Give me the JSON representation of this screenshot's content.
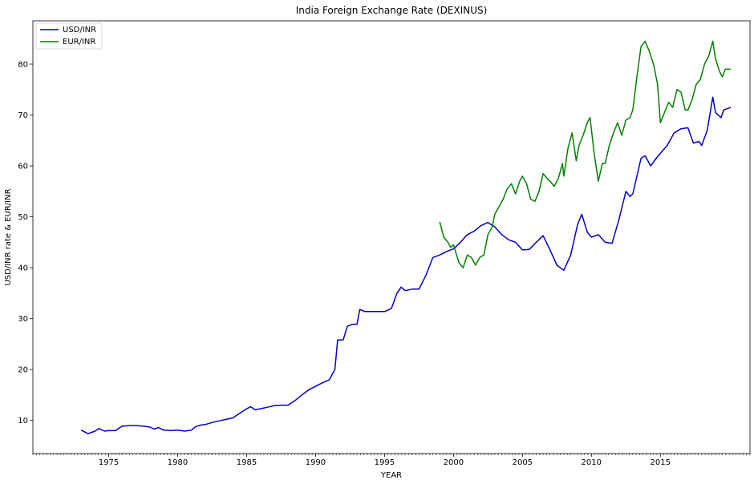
{
  "chart_data": {
    "type": "line",
    "title": "India Foreign Exchange Rate (DEXINUS)",
    "xlabel": "YEAR",
    "ylabel": "USD/INR rate & EUR/INR",
    "xlim": [
      1969.5,
      2021.5
    ],
    "ylim": [
      3.5,
      88.5
    ],
    "xticks": [
      1975,
      1980,
      1985,
      1990,
      1995,
      2000,
      2005,
      2010,
      2015
    ],
    "yticks": [
      10,
      20,
      30,
      40,
      50,
      60,
      70,
      80
    ],
    "grid": false,
    "legend": "top-left",
    "series": [
      {
        "name": "USD/INR",
        "color": "#0000cc",
        "points": [
          [
            1973.0,
            8.1
          ],
          [
            1973.5,
            7.4
          ],
          [
            1974.0,
            7.9
          ],
          [
            1974.3,
            8.4
          ],
          [
            1974.7,
            7.9
          ],
          [
            1975.0,
            8.0
          ],
          [
            1975.5,
            8.0
          ],
          [
            1975.8,
            8.6
          ],
          [
            1976.0,
            8.9
          ],
          [
            1976.5,
            9.0
          ],
          [
            1977.0,
            9.0
          ],
          [
            1977.5,
            8.9
          ],
          [
            1978.0,
            8.7
          ],
          [
            1978.3,
            8.3
          ],
          [
            1978.6,
            8.6
          ],
          [
            1979.0,
            8.1
          ],
          [
            1979.5,
            8.0
          ],
          [
            1980.0,
            8.1
          ],
          [
            1980.5,
            7.9
          ],
          [
            1981.0,
            8.1
          ],
          [
            1981.3,
            8.8
          ],
          [
            1981.7,
            9.1
          ],
          [
            1982.0,
            9.2
          ],
          [
            1982.5,
            9.6
          ],
          [
            1983.0,
            9.9
          ],
          [
            1983.5,
            10.2
          ],
          [
            1984.0,
            10.5
          ],
          [
            1984.5,
            11.4
          ],
          [
            1985.0,
            12.3
          ],
          [
            1985.3,
            12.7
          ],
          [
            1985.6,
            12.1
          ],
          [
            1986.0,
            12.3
          ],
          [
            1986.5,
            12.6
          ],
          [
            1987.0,
            12.9
          ],
          [
            1987.5,
            13.0
          ],
          [
            1988.0,
            13.0
          ],
          [
            1988.5,
            13.9
          ],
          [
            1989.0,
            15.0
          ],
          [
            1989.5,
            16.0
          ],
          [
            1990.0,
            16.7
          ],
          [
            1990.5,
            17.4
          ],
          [
            1991.0,
            18.0
          ],
          [
            1991.4,
            20.0
          ],
          [
            1991.6,
            25.8
          ],
          [
            1992.0,
            25.8
          ],
          [
            1992.3,
            28.5
          ],
          [
            1992.7,
            28.9
          ],
          [
            1993.0,
            28.9
          ],
          [
            1993.2,
            31.8
          ],
          [
            1993.6,
            31.4
          ],
          [
            1994.0,
            31.4
          ],
          [
            1995.0,
            31.4
          ],
          [
            1995.5,
            32.0
          ],
          [
            1995.9,
            35.0
          ],
          [
            1996.2,
            36.2
          ],
          [
            1996.5,
            35.5
          ],
          [
            1997.0,
            35.8
          ],
          [
            1997.5,
            35.8
          ],
          [
            1998.0,
            38.5
          ],
          [
            1998.5,
            42.0
          ],
          [
            1999.0,
            42.5
          ],
          [
            1999.5,
            43.2
          ],
          [
            2000.0,
            43.7
          ],
          [
            2000.5,
            45.0
          ],
          [
            2001.0,
            46.5
          ],
          [
            2001.5,
            47.2
          ],
          [
            2002.0,
            48.3
          ],
          [
            2002.5,
            48.9
          ],
          [
            2003.0,
            48.0
          ],
          [
            2003.5,
            46.5
          ],
          [
            2004.0,
            45.5
          ],
          [
            2004.5,
            45.0
          ],
          [
            2005.0,
            43.5
          ],
          [
            2005.5,
            43.6
          ],
          [
            2006.0,
            45.0
          ],
          [
            2006.5,
            46.3
          ],
          [
            2007.0,
            43.5
          ],
          [
            2007.5,
            40.5
          ],
          [
            2008.0,
            39.5
          ],
          [
            2008.5,
            42.5
          ],
          [
            2009.0,
            48.5
          ],
          [
            2009.3,
            50.5
          ],
          [
            2009.7,
            47.0
          ],
          [
            2010.0,
            46.0
          ],
          [
            2010.5,
            46.5
          ],
          [
            2011.0,
            45.0
          ],
          [
            2011.5,
            44.8
          ],
          [
            2012.0,
            49.5
          ],
          [
            2012.5,
            55.0
          ],
          [
            2012.8,
            54.0
          ],
          [
            2013.0,
            54.5
          ],
          [
            2013.6,
            61.5
          ],
          [
            2013.9,
            62.0
          ],
          [
            2014.3,
            60.0
          ],
          [
            2014.7,
            61.5
          ],
          [
            2015.0,
            62.5
          ],
          [
            2015.5,
            64.0
          ],
          [
            2016.0,
            66.5
          ],
          [
            2016.5,
            67.3
          ],
          [
            2017.0,
            67.5
          ],
          [
            2017.4,
            64.5
          ],
          [
            2017.8,
            64.8
          ],
          [
            2018.0,
            64.0
          ],
          [
            2018.4,
            67.0
          ],
          [
            2018.8,
            73.5
          ],
          [
            2019.0,
            70.5
          ],
          [
            2019.4,
            69.5
          ],
          [
            2019.6,
            71.0
          ],
          [
            2019.9,
            71.3
          ],
          [
            2020.1,
            71.5
          ]
        ]
      },
      {
        "name": "EUR/INR",
        "color": "#008000",
        "points": [
          [
            1999.0,
            49.0
          ],
          [
            1999.3,
            46.0
          ],
          [
            1999.6,
            45.0
          ],
          [
            1999.8,
            44.0
          ],
          [
            2000.0,
            44.5
          ],
          [
            2000.4,
            41.0
          ],
          [
            2000.7,
            40.0
          ],
          [
            2001.0,
            42.5
          ],
          [
            2001.3,
            42.0
          ],
          [
            2001.6,
            40.5
          ],
          [
            2001.9,
            42.0
          ],
          [
            2002.2,
            42.5
          ],
          [
            2002.5,
            46.5
          ],
          [
            2002.8,
            48.0
          ],
          [
            2003.0,
            50.5
          ],
          [
            2003.3,
            52.0
          ],
          [
            2003.6,
            53.5
          ],
          [
            2003.9,
            55.5
          ],
          [
            2004.2,
            56.5
          ],
          [
            2004.5,
            54.5
          ],
          [
            2004.8,
            57.0
          ],
          [
            2005.0,
            58.0
          ],
          [
            2005.3,
            56.5
          ],
          [
            2005.6,
            53.5
          ],
          [
            2005.9,
            53.0
          ],
          [
            2006.2,
            55.0
          ],
          [
            2006.5,
            58.5
          ],
          [
            2006.8,
            57.5
          ],
          [
            2007.0,
            57.0
          ],
          [
            2007.3,
            56.0
          ],
          [
            2007.6,
            57.5
          ],
          [
            2007.9,
            60.5
          ],
          [
            2008.0,
            58.0
          ],
          [
            2008.3,
            63.5
          ],
          [
            2008.6,
            66.5
          ],
          [
            2008.9,
            61.0
          ],
          [
            2009.1,
            64.0
          ],
          [
            2009.4,
            66.0
          ],
          [
            2009.7,
            68.5
          ],
          [
            2009.9,
            69.5
          ],
          [
            2010.2,
            62.5
          ],
          [
            2010.5,
            57.0
          ],
          [
            2010.8,
            60.5
          ],
          [
            2011.0,
            60.5
          ],
          [
            2011.3,
            64.0
          ],
          [
            2011.6,
            66.5
          ],
          [
            2011.9,
            68.5
          ],
          [
            2012.2,
            66.0
          ],
          [
            2012.5,
            69.0
          ],
          [
            2012.8,
            69.5
          ],
          [
            2013.0,
            71.0
          ],
          [
            2013.3,
            77.5
          ],
          [
            2013.6,
            83.5
          ],
          [
            2013.9,
            84.5
          ],
          [
            2014.2,
            82.5
          ],
          [
            2014.5,
            80.0
          ],
          [
            2014.8,
            76.0
          ],
          [
            2015.0,
            68.5
          ],
          [
            2015.3,
            70.5
          ],
          [
            2015.6,
            72.5
          ],
          [
            2015.9,
            71.5
          ],
          [
            2016.2,
            75.0
          ],
          [
            2016.5,
            74.5
          ],
          [
            2016.8,
            71.0
          ],
          [
            2017.0,
            71.0
          ],
          [
            2017.3,
            73.0
          ],
          [
            2017.6,
            76.0
          ],
          [
            2017.9,
            77.0
          ],
          [
            2018.2,
            80.0
          ],
          [
            2018.5,
            81.5
          ],
          [
            2018.8,
            84.5
          ],
          [
            2019.0,
            81.0
          ],
          [
            2019.3,
            78.5
          ],
          [
            2019.5,
            77.5
          ],
          [
            2019.7,
            79.0
          ],
          [
            2020.1,
            79.0
          ]
        ]
      }
    ]
  }
}
